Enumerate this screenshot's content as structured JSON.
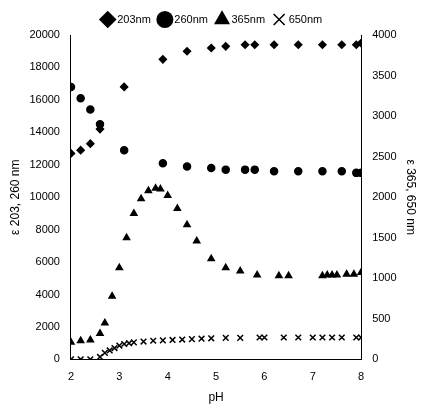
{
  "chart_data": {
    "type": "scatter",
    "x_label": "pH",
    "y_label": "ε 203, 260 nm",
    "y2_label": "ε 365, 650 nm",
    "xlim": [
      2,
      8
    ],
    "xticks": [
      2,
      3,
      4,
      5,
      6,
      7,
      8
    ],
    "ylim": [
      0,
      20000
    ],
    "yticks": [
      0,
      2000,
      4000,
      6000,
      8000,
      10000,
      12000,
      14000,
      16000,
      18000,
      20000
    ],
    "y2lim": [
      0,
      4000
    ],
    "y2ticks": [
      0,
      500,
      1000,
      1500,
      2000,
      2500,
      3000,
      3500,
      4000
    ],
    "grid": false,
    "legend": "top",
    "series": [
      {
        "name": "203nm",
        "color": "#000000",
        "marker": "diamond",
        "x": [
          2.0,
          2.2,
          2.4,
          2.6,
          3.1,
          3.9,
          4.4,
          4.9,
          5.2,
          5.6,
          5.8,
          6.2,
          6.7,
          7.2,
          7.6,
          7.9,
          8.0
        ],
        "values": [
          12700,
          12900,
          13300,
          14200,
          16800,
          18500,
          19000,
          19200,
          19300,
          19400,
          19400,
          19400,
          19400,
          19400,
          19400,
          19400,
          19500
        ]
      },
      {
        "name": "260nm",
        "color": "#000000",
        "marker": "circle",
        "x": [
          2.0,
          2.2,
          2.4,
          2.6,
          3.1,
          3.9,
          4.4,
          4.9,
          5.2,
          5.6,
          5.8,
          6.2,
          6.7,
          7.2,
          7.6,
          7.9,
          8.0
        ],
        "values": [
          16800,
          16100,
          15400,
          14500,
          12900,
          12100,
          11900,
          11800,
          11700,
          11700,
          11700,
          11600,
          11600,
          11600,
          11600,
          11500,
          11500
        ]
      },
      {
        "name": "365nm",
        "color": "#000000",
        "marker": "triangle",
        "axis": "y2",
        "x": [
          2.0,
          2.2,
          2.4,
          2.6,
          2.7,
          2.85,
          3.0,
          3.15,
          3.3,
          3.45,
          3.6,
          3.75,
          3.85,
          4.0,
          4.2,
          4.4,
          4.6,
          4.9,
          5.2,
          5.5,
          5.85,
          6.3,
          6.5,
          7.2,
          7.3,
          7.4,
          7.5,
          7.7,
          7.85,
          8.0
        ],
        "values": [
          210,
          230,
          240,
          320,
          450,
          780,
          1130,
          1500,
          1800,
          1980,
          2080,
          2110,
          2100,
          2020,
          1860,
          1660,
          1460,
          1240,
          1130,
          1090,
          1040,
          1030,
          1030,
          1030,
          1040,
          1040,
          1040,
          1050,
          1050,
          1070
        ]
      },
      {
        "name": "650nm",
        "color": "#000000",
        "marker": "cross",
        "axis": "y2",
        "x": [
          2.0,
          2.2,
          2.4,
          2.6,
          2.7,
          2.8,
          2.9,
          3.0,
          3.1,
          3.2,
          3.3,
          3.5,
          3.7,
          3.9,
          4.1,
          4.3,
          4.5,
          4.7,
          4.9,
          5.2,
          5.5,
          5.9,
          6.0,
          6.4,
          6.7,
          7.0,
          7.2,
          7.4,
          7.6,
          7.9,
          8.0
        ],
        "values": [
          0,
          0,
          0,
          30,
          80,
          110,
          140,
          170,
          190,
          200,
          210,
          220,
          230,
          235,
          240,
          245,
          250,
          255,
          260,
          265,
          265,
          270,
          270,
          270,
          270,
          270,
          270,
          270,
          270,
          270,
          270
        ]
      }
    ]
  }
}
